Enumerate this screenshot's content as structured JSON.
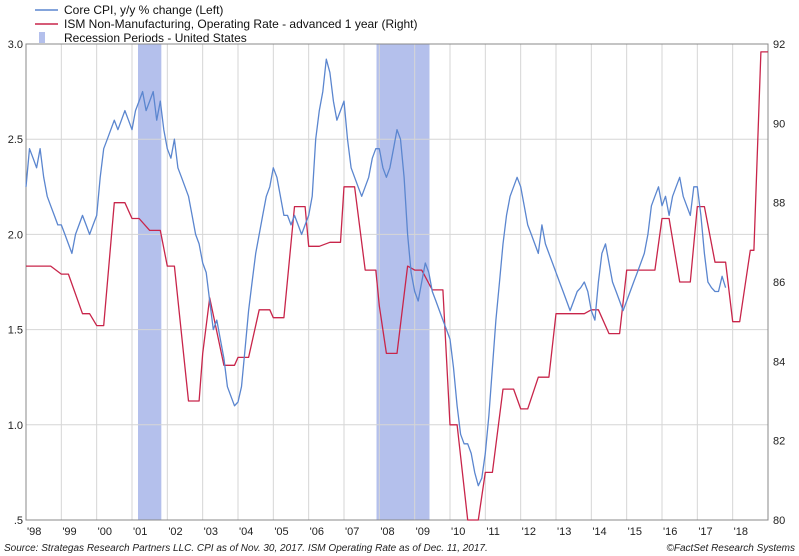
{
  "chart_data": {
    "type": "line",
    "legend": {
      "position": "top-left",
      "entries": [
        {
          "label": "Core CPI, y/y % change  (Left)",
          "kind": "line",
          "color": "#5b86cf"
        },
        {
          "label": "ISM Non-Manufacturing, Operating Rate - advanced 1 year (Right)",
          "kind": "line",
          "color": "#c8254a"
        },
        {
          "label": "Recession Periods - United States",
          "kind": "bar",
          "color": "#b4c0ec"
        }
      ]
    },
    "x_axis": {
      "range": [
        1998.0,
        2019.0
      ],
      "tick_labels": [
        {
          "x": 1998,
          "label": "'98"
        },
        {
          "x": 1999,
          "label": "'99"
        },
        {
          "x": 2000,
          "label": "'00"
        },
        {
          "x": 2001,
          "label": "'01"
        },
        {
          "x": 2002,
          "label": "'02"
        },
        {
          "x": 2003,
          "label": "'03"
        },
        {
          "x": 2004,
          "label": "'04"
        },
        {
          "x": 2005,
          "label": "'05"
        },
        {
          "x": 2006,
          "label": "'06"
        },
        {
          "x": 2007,
          "label": "'07"
        },
        {
          "x": 2008,
          "label": "'08"
        },
        {
          "x": 2009,
          "label": "'09"
        },
        {
          "x": 2010,
          "label": "'10"
        },
        {
          "x": 2011,
          "label": "'11"
        },
        {
          "x": 2012,
          "label": "'12"
        },
        {
          "x": 2013,
          "label": "'13"
        },
        {
          "x": 2014,
          "label": "'14"
        },
        {
          "x": 2015,
          "label": "'15"
        },
        {
          "x": 2016,
          "label": "'16"
        },
        {
          "x": 2017,
          "label": "'17"
        },
        {
          "x": 2018,
          "label": "'18"
        }
      ]
    },
    "y_left": {
      "range": [
        0.5,
        3.0
      ],
      "ticks": [
        {
          "value": 3.0,
          "label": "3.0"
        },
        {
          "value": 2.5,
          "label": "2.5"
        },
        {
          "value": 2.0,
          "label": "2.0"
        },
        {
          "value": 1.5,
          "label": "1.5"
        },
        {
          "value": 1.0,
          "label": "1.0"
        },
        {
          "value": 0.5,
          "label": ".5"
        }
      ]
    },
    "y_right": {
      "range": [
        80,
        92
      ],
      "ticks": [
        {
          "value": 92,
          "label": "92"
        },
        {
          "value": 90,
          "label": "90"
        },
        {
          "value": 88,
          "label": "88"
        },
        {
          "value": 86,
          "label": "86"
        },
        {
          "value": 84,
          "label": "84"
        },
        {
          "value": 82,
          "label": "82"
        },
        {
          "value": 80,
          "label": "80"
        }
      ]
    },
    "grid": true,
    "recessions": [
      [
        2001.17,
        2001.83
      ],
      [
        2007.92,
        2009.42
      ]
    ],
    "series": [
      {
        "name": "Core CPI, y/y % change  (Left)",
        "axis": "left",
        "color": "#5b86cf",
        "x": [
          1998.0,
          1998.1,
          1998.2,
          1998.3,
          1998.4,
          1998.5,
          1998.6,
          1998.7,
          1998.8,
          1998.9,
          1999.0,
          1999.1,
          1999.2,
          1999.3,
          1999.4,
          1999.5,
          1999.6,
          1999.7,
          1999.8,
          1999.9,
          2000.0,
          2000.1,
          2000.2,
          2000.3,
          2000.4,
          2000.5,
          2000.6,
          2000.7,
          2000.8,
          2000.9,
          2001.0,
          2001.1,
          2001.2,
          2001.3,
          2001.4,
          2001.5,
          2001.6,
          2001.7,
          2001.8,
          2001.9,
          2002.0,
          2002.1,
          2002.2,
          2002.3,
          2002.4,
          2002.5,
          2002.6,
          2002.7,
          2002.8,
          2002.9,
          2003.0,
          2003.1,
          2003.2,
          2003.3,
          2003.4,
          2003.5,
          2003.6,
          2003.7,
          2003.8,
          2003.9,
          2004.0,
          2004.1,
          2004.2,
          2004.3,
          2004.4,
          2004.5,
          2004.6,
          2004.7,
          2004.8,
          2004.9,
          2005.0,
          2005.1,
          2005.2,
          2005.3,
          2005.4,
          2005.5,
          2005.6,
          2005.7,
          2005.8,
          2005.9,
          2006.0,
          2006.1,
          2006.2,
          2006.3,
          2006.4,
          2006.5,
          2006.6,
          2006.7,
          2006.8,
          2006.9,
          2007.0,
          2007.1,
          2007.2,
          2007.3,
          2007.4,
          2007.5,
          2007.6,
          2007.7,
          2007.8,
          2007.9,
          2008.0,
          2008.1,
          2008.2,
          2008.3,
          2008.4,
          2008.5,
          2008.6,
          2008.7,
          2008.8,
          2008.9,
          2009.0,
          2009.1,
          2009.2,
          2009.3,
          2009.4,
          2009.5,
          2009.6,
          2009.7,
          2009.8,
          2009.9,
          2010.0,
          2010.1,
          2010.2,
          2010.3,
          2010.4,
          2010.5,
          2010.6,
          2010.7,
          2010.8,
          2010.9,
          2011.0,
          2011.1,
          2011.2,
          2011.3,
          2011.4,
          2011.5,
          2011.6,
          2011.7,
          2011.8,
          2011.9,
          2012.0,
          2012.1,
          2012.2,
          2012.3,
          2012.4,
          2012.5,
          2012.6,
          2012.7,
          2012.8,
          2012.9,
          2013.0,
          2013.1,
          2013.2,
          2013.3,
          2013.4,
          2013.5,
          2013.6,
          2013.7,
          2013.8,
          2013.9,
          2014.0,
          2014.1,
          2014.2,
          2014.3,
          2014.4,
          2014.5,
          2014.6,
          2014.7,
          2014.8,
          2014.9,
          2015.0,
          2015.1,
          2015.2,
          2015.3,
          2015.4,
          2015.5,
          2015.6,
          2015.7,
          2015.8,
          2015.9,
          2016.0,
          2016.1,
          2016.2,
          2016.3,
          2016.4,
          2016.5,
          2016.6,
          2016.7,
          2016.8,
          2016.9,
          2017.0,
          2017.1,
          2017.2,
          2017.3,
          2017.4,
          2017.5,
          2017.6,
          2017.7,
          2017.8
        ],
        "y": [
          2.25,
          2.45,
          2.4,
          2.35,
          2.45,
          2.3,
          2.2,
          2.15,
          2.1,
          2.05,
          2.05,
          2.0,
          1.95,
          1.9,
          2.0,
          2.05,
          2.1,
          2.05,
          2.0,
          2.05,
          2.1,
          2.3,
          2.45,
          2.5,
          2.55,
          2.6,
          2.55,
          2.6,
          2.65,
          2.6,
          2.55,
          2.65,
          2.7,
          2.75,
          2.65,
          2.7,
          2.75,
          2.6,
          2.7,
          2.55,
          2.45,
          2.4,
          2.5,
          2.35,
          2.3,
          2.25,
          2.2,
          2.1,
          2.0,
          1.95,
          1.85,
          1.8,
          1.65,
          1.5,
          1.55,
          1.45,
          1.35,
          1.2,
          1.15,
          1.1,
          1.12,
          1.2,
          1.4,
          1.6,
          1.75,
          1.9,
          2.0,
          2.1,
          2.2,
          2.25,
          2.35,
          2.3,
          2.2,
          2.1,
          2.1,
          2.05,
          2.1,
          2.05,
          2.0,
          2.05,
          2.1,
          2.2,
          2.5,
          2.65,
          2.75,
          2.92,
          2.85,
          2.7,
          2.6,
          2.65,
          2.7,
          2.5,
          2.35,
          2.3,
          2.25,
          2.2,
          2.25,
          2.3,
          2.4,
          2.45,
          2.45,
          2.35,
          2.3,
          2.35,
          2.45,
          2.55,
          2.5,
          2.3,
          2.0,
          1.8,
          1.7,
          1.65,
          1.75,
          1.85,
          1.8,
          1.7,
          1.65,
          1.6,
          1.55,
          1.5,
          1.45,
          1.3,
          1.1,
          0.95,
          0.9,
          0.9,
          0.85,
          0.75,
          0.68,
          0.72,
          0.85,
          1.05,
          1.3,
          1.55,
          1.75,
          1.95,
          2.1,
          2.2,
          2.25,
          2.3,
          2.25,
          2.15,
          2.05,
          2.0,
          1.95,
          1.9,
          2.05,
          1.95,
          1.9,
          1.85,
          1.8,
          1.75,
          1.7,
          1.65,
          1.6,
          1.65,
          1.7,
          1.72,
          1.75,
          1.7,
          1.6,
          1.55,
          1.75,
          1.9,
          1.95,
          1.85,
          1.75,
          1.7,
          1.65,
          1.6,
          1.65,
          1.7,
          1.75,
          1.8,
          1.85,
          1.9,
          2.0,
          2.15,
          2.2,
          2.25,
          2.15,
          2.2,
          2.1,
          2.2,
          2.25,
          2.3,
          2.2,
          2.15,
          2.1,
          2.25,
          2.25,
          2.1,
          1.9,
          1.75,
          1.72,
          1.7,
          1.7,
          1.78,
          1.72
        ]
      },
      {
        "name": "ISM Non-Manufacturing, Operating Rate - advanced 1 year (Right)",
        "axis": "right",
        "color": "#c8254a",
        "x": [
          1998.0,
          1998.7,
          1999.0,
          1999.2,
          1999.6,
          1999.8,
          2000.0,
          2000.2,
          2000.5,
          2000.8,
          2001.0,
          2001.2,
          2001.5,
          2001.8,
          2002.0,
          2002.2,
          2002.6,
          2002.9,
          2003.0,
          2003.2,
          2003.6,
          2003.9,
          2004.0,
          2004.3,
          2004.6,
          2004.9,
          2005.0,
          2005.3,
          2005.6,
          2005.9,
          2006.0,
          2006.3,
          2006.6,
          2006.9,
          2007.0,
          2007.3,
          2007.6,
          2007.9,
          2008.0,
          2008.2,
          2008.5,
          2008.8,
          2009.0,
          2009.2,
          2009.5,
          2009.8,
          2010.0,
          2010.2,
          2010.5,
          2010.8,
          2011.0,
          2011.2,
          2011.5,
          2011.8,
          2012.0,
          2012.2,
          2012.5,
          2012.8,
          2013.0,
          2013.2,
          2013.5,
          2013.8,
          2014.0,
          2014.2,
          2014.5,
          2014.8,
          2015.0,
          2015.2,
          2015.5,
          2015.8,
          2016.0,
          2016.2,
          2016.5,
          2016.8,
          2017.0,
          2017.2,
          2017.5,
          2017.8,
          2018.0,
          2018.2,
          2018.5,
          2018.6,
          2018.8,
          2019.0
        ],
        "y": [
          86.4,
          86.4,
          86.2,
          86.2,
          85.2,
          85.2,
          84.9,
          84.9,
          88.0,
          88.0,
          87.6,
          87.6,
          87.3,
          87.3,
          86.4,
          86.4,
          83.0,
          83.0,
          84.2,
          85.6,
          83.9,
          83.9,
          84.1,
          84.1,
          85.3,
          85.3,
          85.1,
          85.1,
          87.9,
          87.9,
          86.9,
          86.9,
          87.0,
          87.0,
          88.4,
          88.4,
          86.3,
          86.3,
          85.4,
          84.2,
          84.2,
          86.4,
          86.3,
          86.3,
          85.8,
          85.8,
          82.4,
          82.4,
          80.0,
          80.0,
          81.2,
          81.2,
          83.3,
          83.3,
          82.8,
          82.8,
          83.6,
          83.6,
          85.2,
          85.2,
          85.2,
          85.2,
          85.3,
          85.3,
          84.7,
          84.7,
          86.3,
          86.3,
          86.3,
          86.3,
          87.6,
          87.6,
          86.0,
          86.0,
          87.9,
          87.9,
          86.5,
          86.5,
          85.0,
          85.0,
          86.8,
          86.8,
          91.8,
          91.8
        ]
      }
    ]
  },
  "footer": {
    "source": "Source: Strategas Research Partners LLC. CPI as of Nov. 30, 2017. ISM Operating Rate as of Dec. 11, 2017.",
    "credit": "©FactSet Research Systems"
  }
}
